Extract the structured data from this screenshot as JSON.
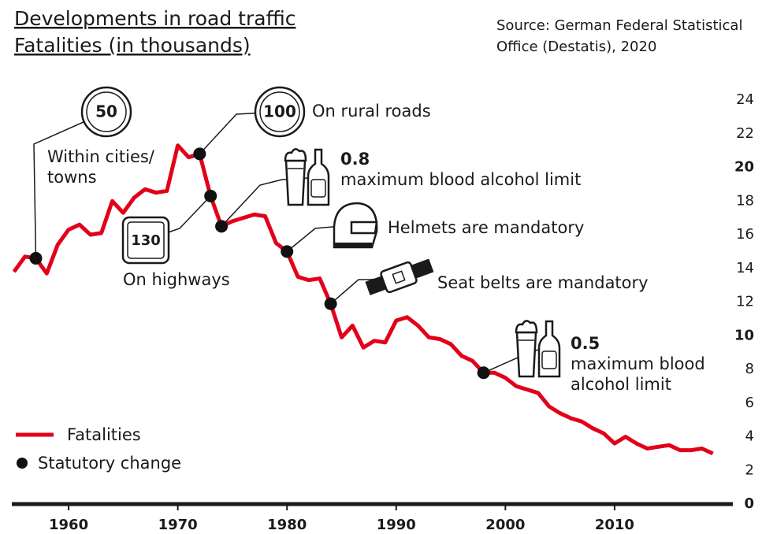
{
  "chart_data": {
    "type": "line",
    "title": [
      "Developments in road traffic",
      "Fatalities (in thousands)"
    ],
    "source": [
      "Source: German Federal Statistical",
      "Office (Destatis), 2020"
    ],
    "x": [
      1955,
      1956,
      1957,
      1958,
      1959,
      1960,
      1961,
      1962,
      1963,
      1964,
      1965,
      1966,
      1967,
      1968,
      1969,
      1970,
      1971,
      1972,
      1973,
      1974,
      1975,
      1976,
      1977,
      1978,
      1979,
      1980,
      1981,
      1982,
      1983,
      1984,
      1985,
      1986,
      1987,
      1988,
      1989,
      1990,
      1991,
      1992,
      1993,
      1994,
      1995,
      1996,
      1997,
      1998,
      1999,
      2000,
      2001,
      2002,
      2003,
      2004,
      2005,
      2006,
      2007,
      2008,
      2009,
      2010,
      2011,
      2012,
      2013,
      2014,
      2015,
      2016,
      2017,
      2018,
      2019
    ],
    "series": [
      {
        "name": "Fatalities",
        "color": "#e2001a",
        "values": [
          13.8,
          14.7,
          14.6,
          13.7,
          15.4,
          16.3,
          16.6,
          16.0,
          16.1,
          18.0,
          17.3,
          18.2,
          18.7,
          18.5,
          18.6,
          21.3,
          20.6,
          20.8,
          18.3,
          16.5,
          16.8,
          17.0,
          17.2,
          17.1,
          15.5,
          15.0,
          13.5,
          13.3,
          13.4,
          11.9,
          9.9,
          10.6,
          9.3,
          9.7,
          9.6,
          10.9,
          11.1,
          10.6,
          9.9,
          9.8,
          9.5,
          8.8,
          8.5,
          7.8,
          7.8,
          7.5,
          7.0,
          6.8,
          6.6,
          5.8,
          5.4,
          5.1,
          4.9,
          4.5,
          4.2,
          3.6,
          4.0,
          3.6,
          3.3,
          3.4,
          3.5,
          3.2,
          3.2,
          3.3,
          3.0
        ]
      },
      {
        "name": "Statutory change",
        "color": "#111111",
        "x": [
          1957,
          1972,
          1973,
          1974,
          1980,
          1984,
          1998
        ],
        "values": [
          14.6,
          20.8,
          18.3,
          16.5,
          15.0,
          11.9,
          7.8
        ]
      }
    ],
    "annotations": [
      {
        "sign": "50",
        "lines": [
          "Within cities/",
          "towns"
        ]
      },
      {
        "sign": "100",
        "lines": [
          "On rural roads"
        ]
      },
      {
        "sign": "130",
        "lines": [
          "On highways"
        ]
      },
      {
        "sign": "0.8",
        "lines": [
          "maximum blood alcohol limit"
        ]
      },
      {
        "lines": [
          "Helmets are mandatory"
        ]
      },
      {
        "lines": [
          "Seat belts are mandatory"
        ]
      },
      {
        "sign": "0.5",
        "lines": [
          "maximum blood",
          "alcohol limit"
        ]
      }
    ],
    "xlim": [
      1954.8,
      2023.5
    ],
    "xticks": [
      1960,
      1970,
      1980,
      1990,
      2000,
      2010
    ],
    "ylim": [
      0,
      24
    ],
    "yticks": [
      0,
      2,
      4,
      6,
      8,
      10,
      12,
      14,
      16,
      18,
      20,
      22,
      24
    ]
  }
}
